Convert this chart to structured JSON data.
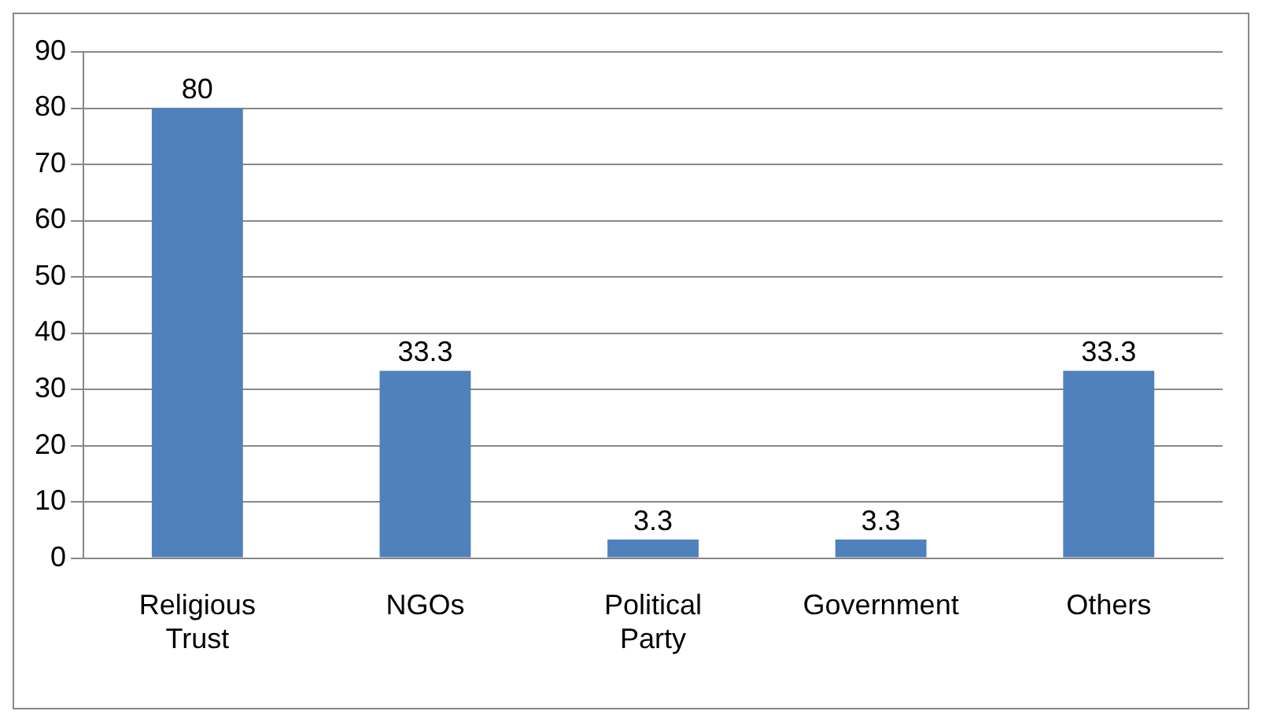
{
  "chart_data": {
    "type": "bar",
    "categories": [
      "Religious Trust",
      "NGOs",
      "Political Party",
      "Government",
      "Others"
    ],
    "values": [
      80,
      33.3,
      3.3,
      3.3,
      33.3
    ],
    "color": "#4f81bd",
    "ylim": [
      0,
      90
    ],
    "yticks": [
      0,
      10,
      20,
      30,
      40,
      50,
      60,
      70,
      80,
      90
    ],
    "grid": "y",
    "data_labels": true,
    "legend": false
  }
}
